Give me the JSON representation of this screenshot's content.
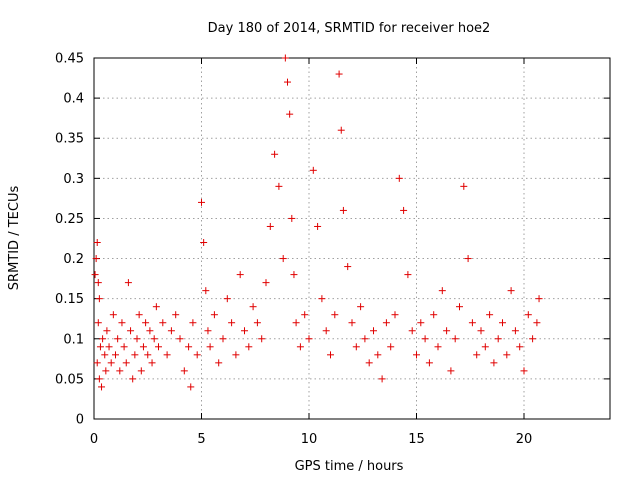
{
  "chart_data": {
    "type": "scatter",
    "title": "Day 180 of 2014, SRMTID for receiver hoe2",
    "xlabel": "GPS time / hours",
    "ylabel": "SRMTID / TECUs",
    "xlim": [
      0,
      24
    ],
    "ylim": [
      0,
      0.45
    ],
    "x_ticks": [
      0,
      5,
      10,
      15,
      20
    ],
    "x_tick_labels": [
      "0",
      "5",
      "10",
      "15",
      "20"
    ],
    "y_ticks": [
      0,
      0.05,
      0.1,
      0.15,
      0.2,
      0.25,
      0.3,
      0.35,
      0.4,
      0.45
    ],
    "y_tick_labels": [
      "0",
      "0.05",
      "0.1",
      "0.15",
      "0.2",
      "0.25",
      "0.3",
      "0.35",
      "0.4",
      "0.45"
    ],
    "grid": true,
    "marker": "plus",
    "color": "#e00000",
    "series": [
      {
        "x": [
          0.05,
          0.1,
          0.15,
          0.2,
          0.25,
          0.3,
          0.15,
          0.2,
          0.25,
          0.35,
          0.4,
          0.5,
          0.55,
          0.6,
          0.7,
          0.8,
          0.9,
          1.0,
          1.1,
          1.2,
          1.3,
          1.4,
          1.5,
          1.6,
          1.7,
          1.8,
          1.9,
          2.0,
          2.1,
          2.2,
          2.3,
          2.4,
          2.5,
          2.6,
          2.7,
          2.8,
          2.9,
          3.0,
          3.2,
          3.4,
          3.6,
          3.8,
          4.0,
          4.2,
          4.4,
          4.5,
          4.6,
          4.8,
          5.0,
          5.1,
          5.2,
          5.3,
          5.4,
          5.6,
          5.8,
          6.0,
          6.2,
          6.4,
          6.6,
          6.8,
          7.0,
          7.2,
          7.4,
          7.6,
          7.8,
          8.0,
          8.2,
          8.4,
          8.6,
          8.8,
          8.9,
          9.0,
          9.1,
          9.2,
          9.3,
          9.4,
          9.6,
          9.8,
          10.0,
          10.2,
          10.4,
          10.6,
          10.8,
          11.0,
          11.2,
          11.4,
          11.5,
          11.6,
          11.8,
          12.0,
          12.2,
          12.4,
          12.6,
          12.8,
          13.0,
          13.2,
          13.4,
          13.6,
          13.8,
          14.0,
          14.2,
          14.4,
          14.6,
          14.8,
          15.0,
          15.2,
          15.4,
          15.6,
          15.8,
          16.0,
          16.2,
          16.4,
          16.6,
          16.8,
          17.0,
          17.2,
          17.4,
          17.6,
          17.8,
          18.0,
          18.2,
          18.4,
          18.6,
          18.8,
          19.0,
          19.2,
          19.4,
          19.6,
          19.8,
          20.0,
          20.2,
          20.4,
          20.6,
          20.7
        ],
        "y": [
          0.18,
          0.2,
          0.22,
          0.17,
          0.15,
          0.09,
          0.07,
          0.12,
          0.05,
          0.04,
          0.1,
          0.08,
          0.06,
          0.11,
          0.09,
          0.07,
          0.13,
          0.08,
          0.1,
          0.06,
          0.12,
          0.09,
          0.07,
          0.17,
          0.11,
          0.05,
          0.08,
          0.1,
          0.13,
          0.06,
          0.09,
          0.12,
          0.08,
          0.11,
          0.07,
          0.1,
          0.14,
          0.09,
          0.12,
          0.08,
          0.11,
          0.13,
          0.1,
          0.06,
          0.09,
          0.04,
          0.12,
          0.08,
          0.27,
          0.22,
          0.16,
          0.11,
          0.09,
          0.13,
          0.07,
          0.1,
          0.15,
          0.12,
          0.08,
          0.18,
          0.11,
          0.09,
          0.14,
          0.12,
          0.1,
          0.17,
          0.24,
          0.33,
          0.29,
          0.2,
          0.45,
          0.42,
          0.38,
          0.25,
          0.18,
          0.12,
          0.09,
          0.13,
          0.1,
          0.31,
          0.24,
          0.15,
          0.11,
          0.08,
          0.13,
          0.43,
          0.36,
          0.26,
          0.19,
          0.12,
          0.09,
          0.14,
          0.1,
          0.07,
          0.11,
          0.08,
          0.05,
          0.12,
          0.09,
          0.13,
          0.3,
          0.26,
          0.18,
          0.11,
          0.08,
          0.12,
          0.1,
          0.07,
          0.13,
          0.09,
          0.16,
          0.11,
          0.06,
          0.1,
          0.14,
          0.29,
          0.2,
          0.12,
          0.08,
          0.11,
          0.09,
          0.13,
          0.07,
          0.1,
          0.12,
          0.08,
          0.16,
          0.11,
          0.09,
          0.06,
          0.13,
          0.1,
          0.12,
          0.15
        ]
      }
    ]
  }
}
